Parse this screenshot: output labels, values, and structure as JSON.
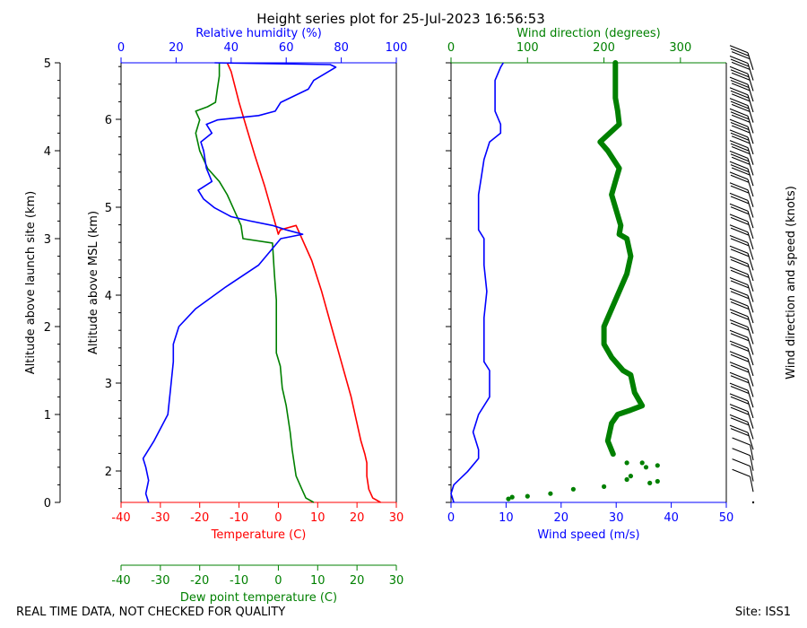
{
  "title": "Height series plot for 25-Jul-2023 16:56:53",
  "footer_left": "REAL TIME DATA, NOT CHECKED FOR QUALITY",
  "footer_right": "Site: ISS1",
  "colors": {
    "temperature": "#ff0000",
    "dewpoint": "#008000",
    "humidity": "#0000ff",
    "wind_speed": "#0000ff",
    "wind_direction": "#008000",
    "barbs": "#000000"
  },
  "chart_data": [
    {
      "type": "line",
      "panel": "thermo",
      "axes": {
        "left_outer": {
          "label": "Altitude above launch site (km)",
          "range": [
            0,
            5
          ],
          "ticks": [
            0,
            1,
            2,
            3,
            4,
            5
          ]
        },
        "left_inner": {
          "label": "Altitude above MSL (km)",
          "ticks": [
            2,
            3,
            4,
            5,
            6
          ]
        },
        "bottom": {
          "label": "Temperature (C)",
          "range": [
            -40,
            30
          ],
          "ticks": [
            -40,
            -30,
            -20,
            -10,
            0,
            10,
            20,
            30
          ]
        },
        "bottom2": {
          "label": "Dew point temperature (C)",
          "range": [
            -40,
            30
          ],
          "ticks": [
            -40,
            -30,
            -20,
            -10,
            0,
            10,
            20,
            30
          ]
        },
        "top": {
          "label": "Relative humidity (%)",
          "range": [
            0,
            100
          ],
          "ticks": [
            0,
            20,
            40,
            60,
            80,
            100
          ]
        }
      },
      "series": [
        {
          "key": "temperature",
          "x_axis": "bottom",
          "points": [
            [
              26,
              0
            ],
            [
              24,
              0.05
            ],
            [
              23,
              0.15
            ],
            [
              22.5,
              0.3
            ],
            [
              22.5,
              0.45
            ],
            [
              22,
              0.55
            ],
            [
              21,
              0.7
            ],
            [
              18.5,
              1.2
            ],
            [
              16,
              1.6
            ],
            [
              13.5,
              2.0
            ],
            [
              11,
              2.4
            ],
            [
              8.5,
              2.75
            ],
            [
              4.5,
              3.15
            ],
            [
              0.5,
              3.1
            ],
            [
              0,
              3.05
            ],
            [
              -3.5,
              3.6
            ],
            [
              -6,
              3.95
            ],
            [
              -8,
              4.25
            ],
            [
              -10,
              4.55
            ],
            [
              -12,
              4.9
            ],
            [
              -13,
              5.0
            ]
          ]
        },
        {
          "key": "dewpoint",
          "x_axis": "bottom2",
          "points": [
            [
              9,
              0
            ],
            [
              7,
              0.05
            ],
            [
              6,
              0.15
            ],
            [
              4.5,
              0.3
            ],
            [
              4,
              0.45
            ],
            [
              3.5,
              0.6
            ],
            [
              3,
              0.8
            ],
            [
              2,
              1.1
            ],
            [
              1,
              1.3
            ],
            [
              0.5,
              1.55
            ],
            [
              -0.5,
              1.7
            ],
            [
              -0.5,
              2.0
            ],
            [
              -0.5,
              2.3
            ],
            [
              -1,
              2.6
            ],
            [
              -1.5,
              2.95
            ],
            [
              -9,
              3.0
            ],
            [
              -9.5,
              3.15
            ],
            [
              -11,
              3.3
            ],
            [
              -13,
              3.5
            ],
            [
              -15,
              3.65
            ],
            [
              -18,
              3.8
            ],
            [
              -20,
              4.0
            ],
            [
              -21,
              4.2
            ],
            [
              -20,
              4.35
            ],
            [
              -21,
              4.45
            ],
            [
              -18,
              4.5
            ],
            [
              -16,
              4.55
            ],
            [
              -15.5,
              4.7
            ],
            [
              -15,
              4.85
            ],
            [
              -15,
              5.0
            ]
          ]
        },
        {
          "key": "humidity",
          "x_axis": "top",
          "points": [
            [
              10,
              0
            ],
            [
              9,
              0.1
            ],
            [
              10,
              0.25
            ],
            [
              9,
              0.4
            ],
            [
              8,
              0.5
            ],
            [
              12,
              0.7
            ],
            [
              17,
              1.0
            ],
            [
              18,
              1.3
            ],
            [
              19,
              1.6
            ],
            [
              19,
              1.8
            ],
            [
              21,
              2.0
            ],
            [
              27,
              2.2
            ],
            [
              38,
              2.45
            ],
            [
              50,
              2.7
            ],
            [
              58,
              3.0
            ],
            [
              66,
              3.05
            ],
            [
              60,
              3.1
            ],
            [
              55,
              3.15
            ],
            [
              47,
              3.2
            ],
            [
              40,
              3.25
            ],
            [
              34,
              3.35
            ],
            [
              30,
              3.45
            ],
            [
              28,
              3.55
            ],
            [
              33,
              3.65
            ],
            [
              31,
              3.8
            ],
            [
              30,
              4.0
            ],
            [
              29,
              4.1
            ],
            [
              33,
              4.2
            ],
            [
              31,
              4.3
            ],
            [
              35,
              4.35
            ],
            [
              50,
              4.4
            ],
            [
              56,
              4.45
            ],
            [
              58,
              4.55
            ],
            [
              68,
              4.7
            ],
            [
              70,
              4.8
            ],
            [
              78,
              4.95
            ],
            [
              76,
              4.98
            ],
            [
              34,
              5.0
            ]
          ]
        }
      ]
    },
    {
      "type": "line",
      "panel": "wind",
      "axes": {
        "bottom": {
          "label": "Wind speed (m/s)",
          "range": [
            0,
            50
          ],
          "ticks": [
            0,
            10,
            20,
            30,
            40,
            50
          ]
        },
        "top": {
          "label": "Wind direction (degrees)",
          "range": [
            0,
            360
          ],
          "ticks": [
            0,
            100,
            200,
            300
          ]
        },
        "right": {
          "label": "Wind direction and speed (knots)"
        }
      },
      "series": [
        {
          "key": "wind_speed",
          "x_axis": "bottom",
          "points": [
            [
              0.5,
              0
            ],
            [
              0,
              0.1
            ],
            [
              0.5,
              0.2
            ],
            [
              3,
              0.35
            ],
            [
              5,
              0.5
            ],
            [
              5,
              0.6
            ],
            [
              4,
              0.8
            ],
            [
              5,
              1.0
            ],
            [
              7,
              1.2
            ],
            [
              7,
              1.5
            ],
            [
              6,
              1.6
            ],
            [
              6,
              1.8
            ],
            [
              6,
              2.1
            ],
            [
              6.5,
              2.4
            ],
            [
              6,
              2.7
            ],
            [
              6,
              3.0
            ],
            [
              5,
              3.1
            ],
            [
              5,
              3.3
            ],
            [
              5,
              3.5
            ],
            [
              5.5,
              3.7
            ],
            [
              6,
              3.9
            ],
            [
              7,
              4.1
            ],
            [
              9,
              4.2
            ],
            [
              9,
              4.3
            ],
            [
              8,
              4.45
            ],
            [
              8,
              4.6
            ],
            [
              8,
              4.8
            ],
            [
              9,
              4.95
            ],
            [
              9.5,
              5.0
            ]
          ]
        },
        {
          "key": "wind_direction",
          "x_axis": "top",
          "marker": "dots",
          "points": [
            [
              75,
              0.04
            ],
            [
              80,
              0.06
            ],
            [
              100,
              0.07
            ],
            [
              130,
              0.1
            ],
            [
              160,
              0.15
            ],
            [
              200,
              0.18
            ],
            [
              260,
              0.22
            ],
            [
              270,
              0.24
            ],
            [
              230,
              0.26
            ],
            [
              235,
              0.3
            ],
            [
              255,
              0.4
            ],
            [
              270,
              0.42
            ],
            [
              250,
              0.45
            ],
            [
              230,
              0.45
            ],
            [
              212,
              0.55
            ],
            [
              205,
              0.7
            ],
            [
              210,
              0.9
            ],
            [
              218,
              1.0
            ],
            [
              235,
              1.05
            ],
            [
              250,
              1.1
            ],
            [
              240,
              1.25
            ],
            [
              235,
              1.45
            ],
            [
              225,
              1.5
            ],
            [
              210,
              1.65
            ],
            [
              200,
              1.8
            ],
            [
              200,
              2.0
            ],
            [
              230,
              2.6
            ],
            [
              235,
              2.8
            ],
            [
              230,
              3.0
            ],
            [
              220,
              3.05
            ],
            [
              222,
              3.15
            ],
            [
              210,
              3.5
            ],
            [
              215,
              3.65
            ],
            [
              220,
              3.8
            ],
            [
              205,
              4.0
            ],
            [
              195,
              4.1
            ],
            [
              220,
              4.3
            ],
            [
              218,
              4.45
            ],
            [
              215,
              4.6
            ],
            [
              215,
              4.8
            ],
            [
              215,
              5.0
            ]
          ]
        }
      ]
    }
  ]
}
